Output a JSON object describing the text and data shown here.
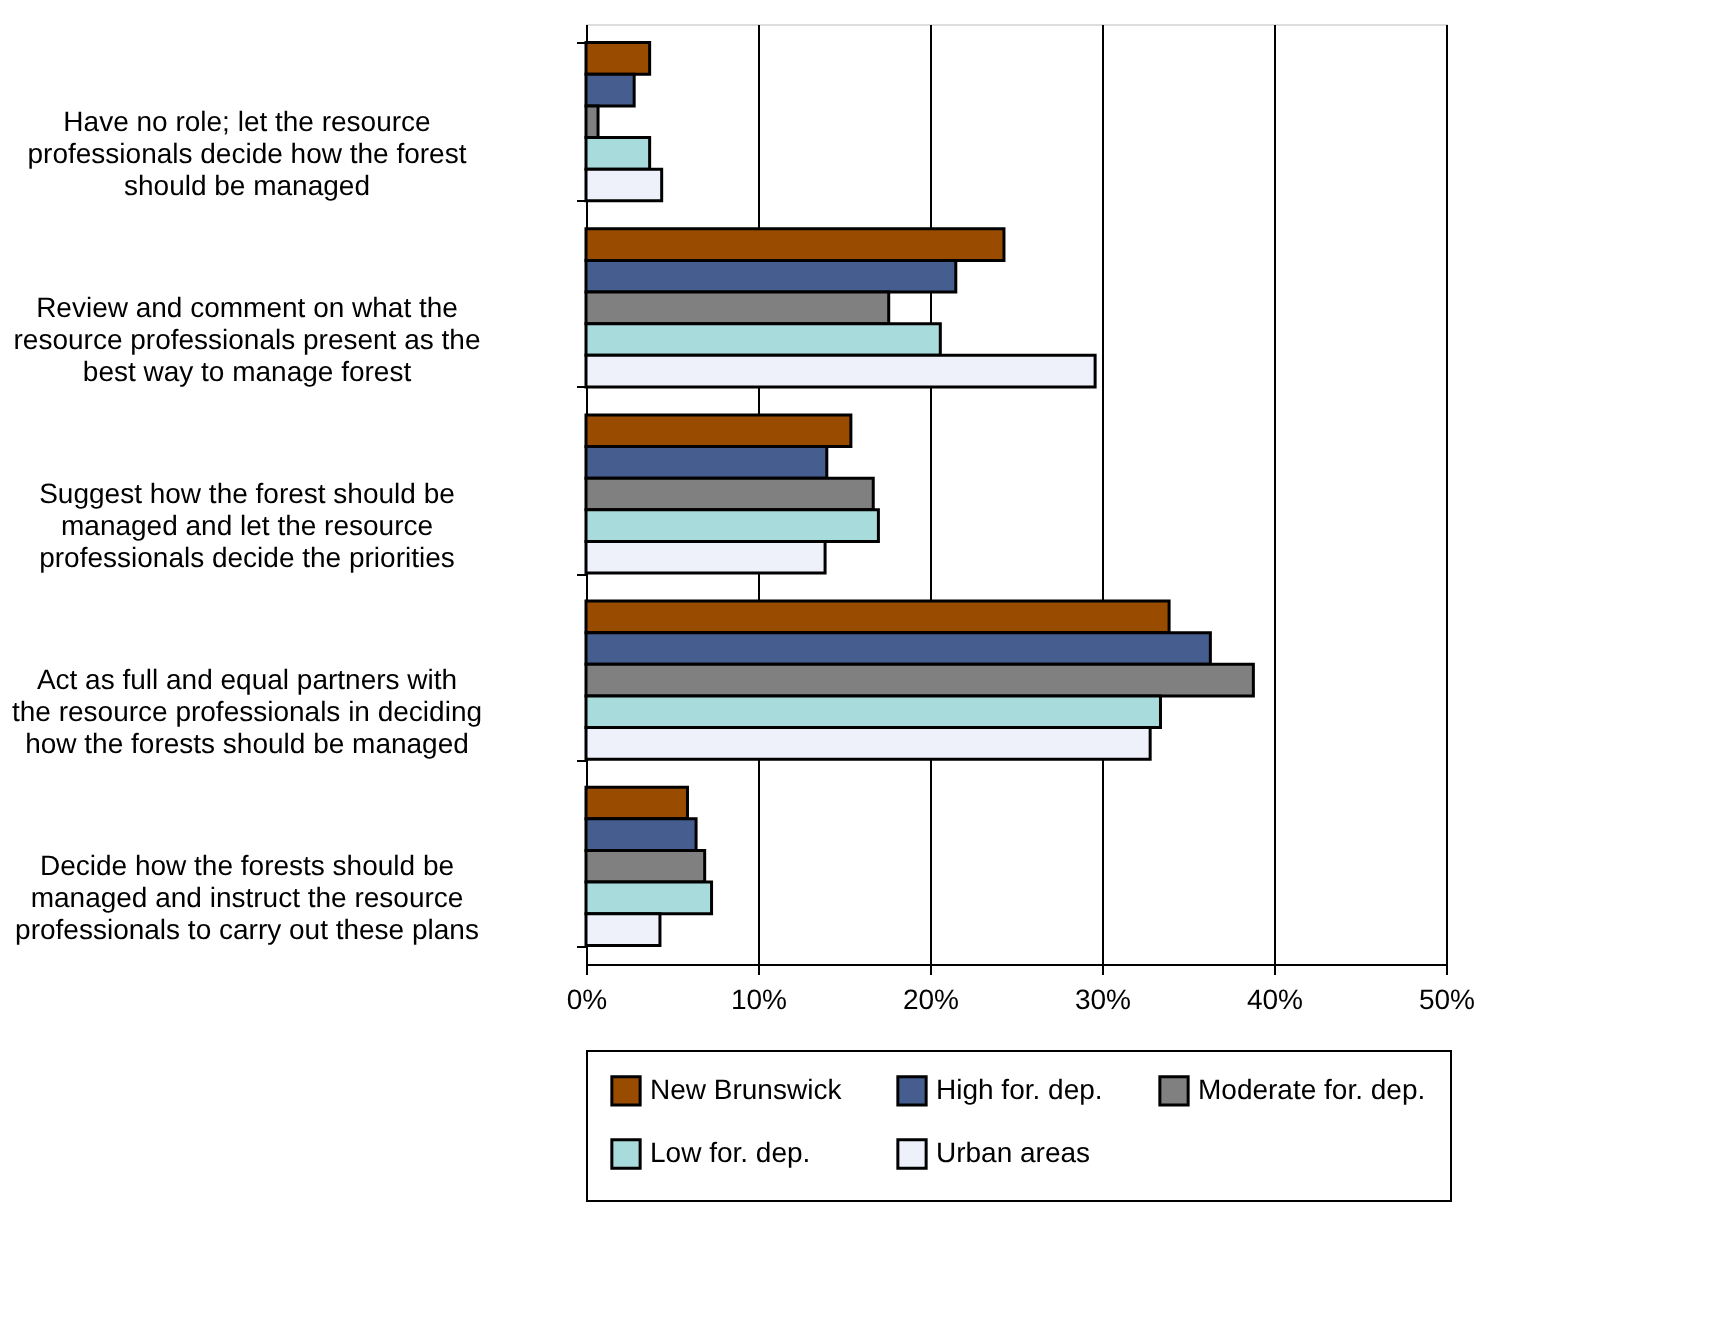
{
  "chart_data": {
    "type": "bar",
    "orientation": "horizontal",
    "categories": [
      "Have no role; let the resource professionals decide how the forest should be managed",
      "Review and comment on what the resource professionals present as the best way to manage forest",
      "Suggest how the forest should be managed and let the resource professionals decide the priorities",
      "Act as full and equal partners with the resource professionals in deciding how the forests should be managed",
      "Decide how the forests should be managed and instruct the resource professionals to carry out these plans"
    ],
    "series": [
      {
        "name": "New Brunswick",
        "color": "#994c00",
        "values": [
          3.7,
          24.3,
          15.4,
          33.9,
          5.9
        ]
      },
      {
        "name": "High for. dep.",
        "color": "#465d8f",
        "values": [
          2.8,
          21.5,
          14.0,
          36.3,
          6.4
        ]
      },
      {
        "name": "Moderate for. dep.",
        "color": "#808080",
        "values": [
          0.7,
          17.6,
          16.7,
          38.8,
          6.9
        ]
      },
      {
        "name": "Low for. dep.",
        "color": "#a8dcdc",
        "values": [
          3.7,
          20.6,
          17.0,
          33.4,
          7.3
        ]
      },
      {
        "name": "Urban areas",
        "color": "#eef0fa",
        "values": [
          4.4,
          29.6,
          13.9,
          32.8,
          4.3
        ]
      }
    ],
    "xlim": [
      0,
      50
    ],
    "xticks": [
      {
        "value": 0,
        "label": "0%"
      },
      {
        "value": 10,
        "label": "10%"
      },
      {
        "value": 20,
        "label": "20%"
      },
      {
        "value": 30,
        "label": "30%"
      },
      {
        "value": 40,
        "label": "40%"
      },
      {
        "value": 50,
        "label": "50%"
      }
    ],
    "grid": "x",
    "legend": "bottom"
  }
}
